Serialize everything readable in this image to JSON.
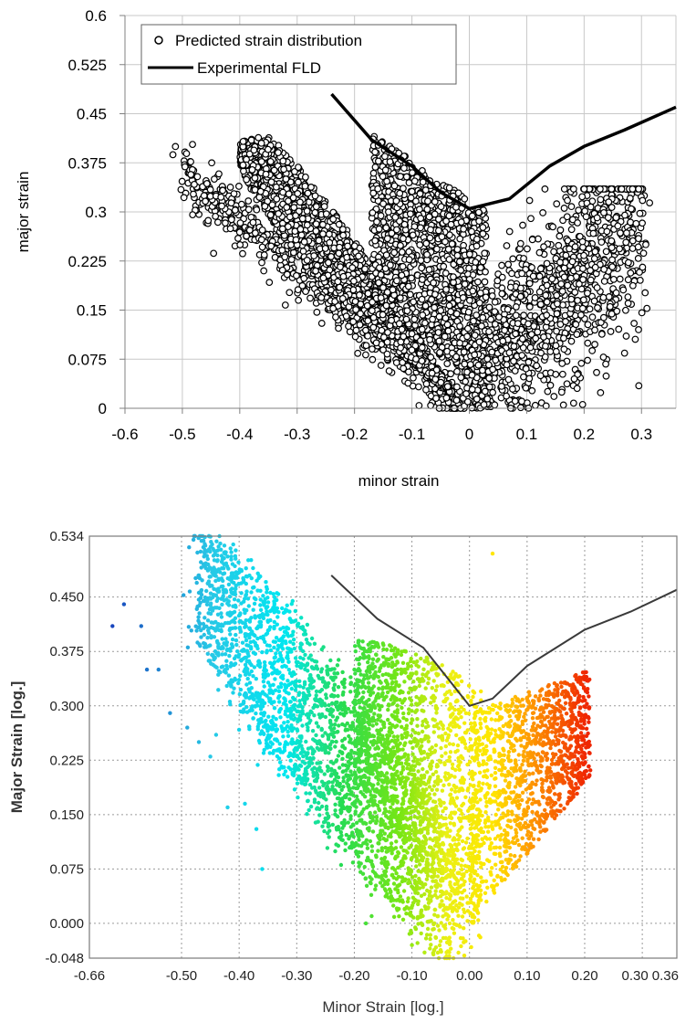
{
  "chart_data": [
    {
      "type": "scatter",
      "title": "",
      "xlabel": "minor strain",
      "ylabel": "major strain",
      "xlim": [
        -0.6,
        0.36
      ],
      "ylim": [
        0,
        0.6
      ],
      "x_ticks": [
        -0.6,
        -0.5,
        -0.4,
        -0.3,
        -0.2,
        -0.1,
        0,
        0.1,
        0.2,
        0.3
      ],
      "x_tick_labels": [
        "-0.6",
        "-0.5",
        "-0.4",
        "-0.3",
        "-0.2",
        "-0.1",
        "0",
        "0.1",
        "0.2",
        "0.3"
      ],
      "y_ticks": [
        0,
        0.075,
        0.15,
        0.225,
        0.3,
        0.375,
        0.45,
        0.525,
        0.6
      ],
      "y_tick_labels": [
        "0",
        "0.075",
        "0.15",
        "0.225",
        "0.3",
        "0.375",
        "0.45",
        "0.525",
        "0.6"
      ],
      "grid": true,
      "legend_position": "top-left",
      "legend": [
        "Predicted strain distribution",
        "Experimental FLD"
      ],
      "series": [
        {
          "name": "Predicted strain distribution",
          "kind": "scatter",
          "marker": "open-circle",
          "color": "#000000",
          "regions": [
            {
              "x_range": [
                -0.5,
                -0.01
              ],
              "y_range": [
                0.0,
                0.35
              ],
              "description": "left diagonal band"
            },
            {
              "x_range": [
                -0.4,
                -0.02
              ],
              "y_range": [
                0.02,
                0.455
              ],
              "description": "upper left lobe"
            },
            {
              "x_range": [
                -0.17,
                0.03
              ],
              "y_range": [
                0.0,
                0.42
              ],
              "description": "central lobe"
            },
            {
              "x_range": [
                0.0,
                0.3
              ],
              "y_range": [
                0.0,
                0.335
              ],
              "description": "right wing"
            }
          ]
        },
        {
          "name": "Experimental FLD",
          "kind": "line",
          "color": "#000000",
          "x": [
            -0.24,
            -0.17,
            -0.1,
            -0.05,
            0.0,
            0.07,
            0.14,
            0.2,
            0.27,
            0.36
          ],
          "y": [
            0.48,
            0.41,
            0.37,
            0.33,
            0.305,
            0.32,
            0.37,
            0.4,
            0.425,
            0.46
          ]
        }
      ]
    },
    {
      "type": "scatter",
      "title": "",
      "xlabel": "Minor Strain [log.]",
      "ylabel": "Major Strain [log.]",
      "xlim": [
        -0.66,
        0.36
      ],
      "ylim": [
        -0.048,
        0.534
      ],
      "x_ticks": [
        -0.66,
        -0.5,
        -0.4,
        -0.3,
        -0.2,
        -0.1,
        0.0,
        0.1,
        0.2,
        0.3,
        0.36
      ],
      "x_tick_labels": [
        "-0.66",
        "-0.50",
        "-0.40",
        "-0.30",
        "-0.20",
        "-0.10",
        "0.00",
        "0.10",
        "0.20",
        "0.30",
        "0.36"
      ],
      "y_ticks": [
        -0.048,
        0.0,
        0.075,
        0.15,
        0.225,
        0.3,
        0.375,
        0.45,
        0.534
      ],
      "y_tick_labels": [
        "-0.048",
        "0.000",
        "0.075",
        "0.150",
        "0.225",
        "0.300",
        "0.375",
        "0.450",
        "0.534"
      ],
      "grid": true,
      "grid_style": "dotted",
      "colormap": "color by minor strain: blue (negative) to cyan, green, yellow, orange, red (positive)",
      "series": [
        {
          "name": "",
          "kind": "scatter",
          "marker": "filled-dot",
          "regions": [
            {
              "x_range": [
                -0.47,
                -0.02
              ],
              "y_range": [
                -0.03,
                0.534
              ],
              "description": "main diagonal band"
            },
            {
              "x_range": [
                -0.2,
                0.02
              ],
              "y_range": [
                -0.03,
                0.39
              ],
              "description": "central lobe"
            },
            {
              "x_range": [
                0.0,
                0.21
              ],
              "y_range": [
                0.0,
                0.37
              ],
              "description": "right wing"
            }
          ]
        },
        {
          "name": "",
          "kind": "line",
          "color": "#3a3a3a",
          "x": [
            -0.24,
            -0.16,
            -0.08,
            -0.04,
            0.0,
            0.04,
            0.1,
            0.2,
            0.28,
            0.36
          ],
          "y": [
            0.48,
            0.42,
            0.38,
            0.34,
            0.3,
            0.31,
            0.355,
            0.405,
            0.43,
            0.46
          ]
        }
      ]
    }
  ]
}
